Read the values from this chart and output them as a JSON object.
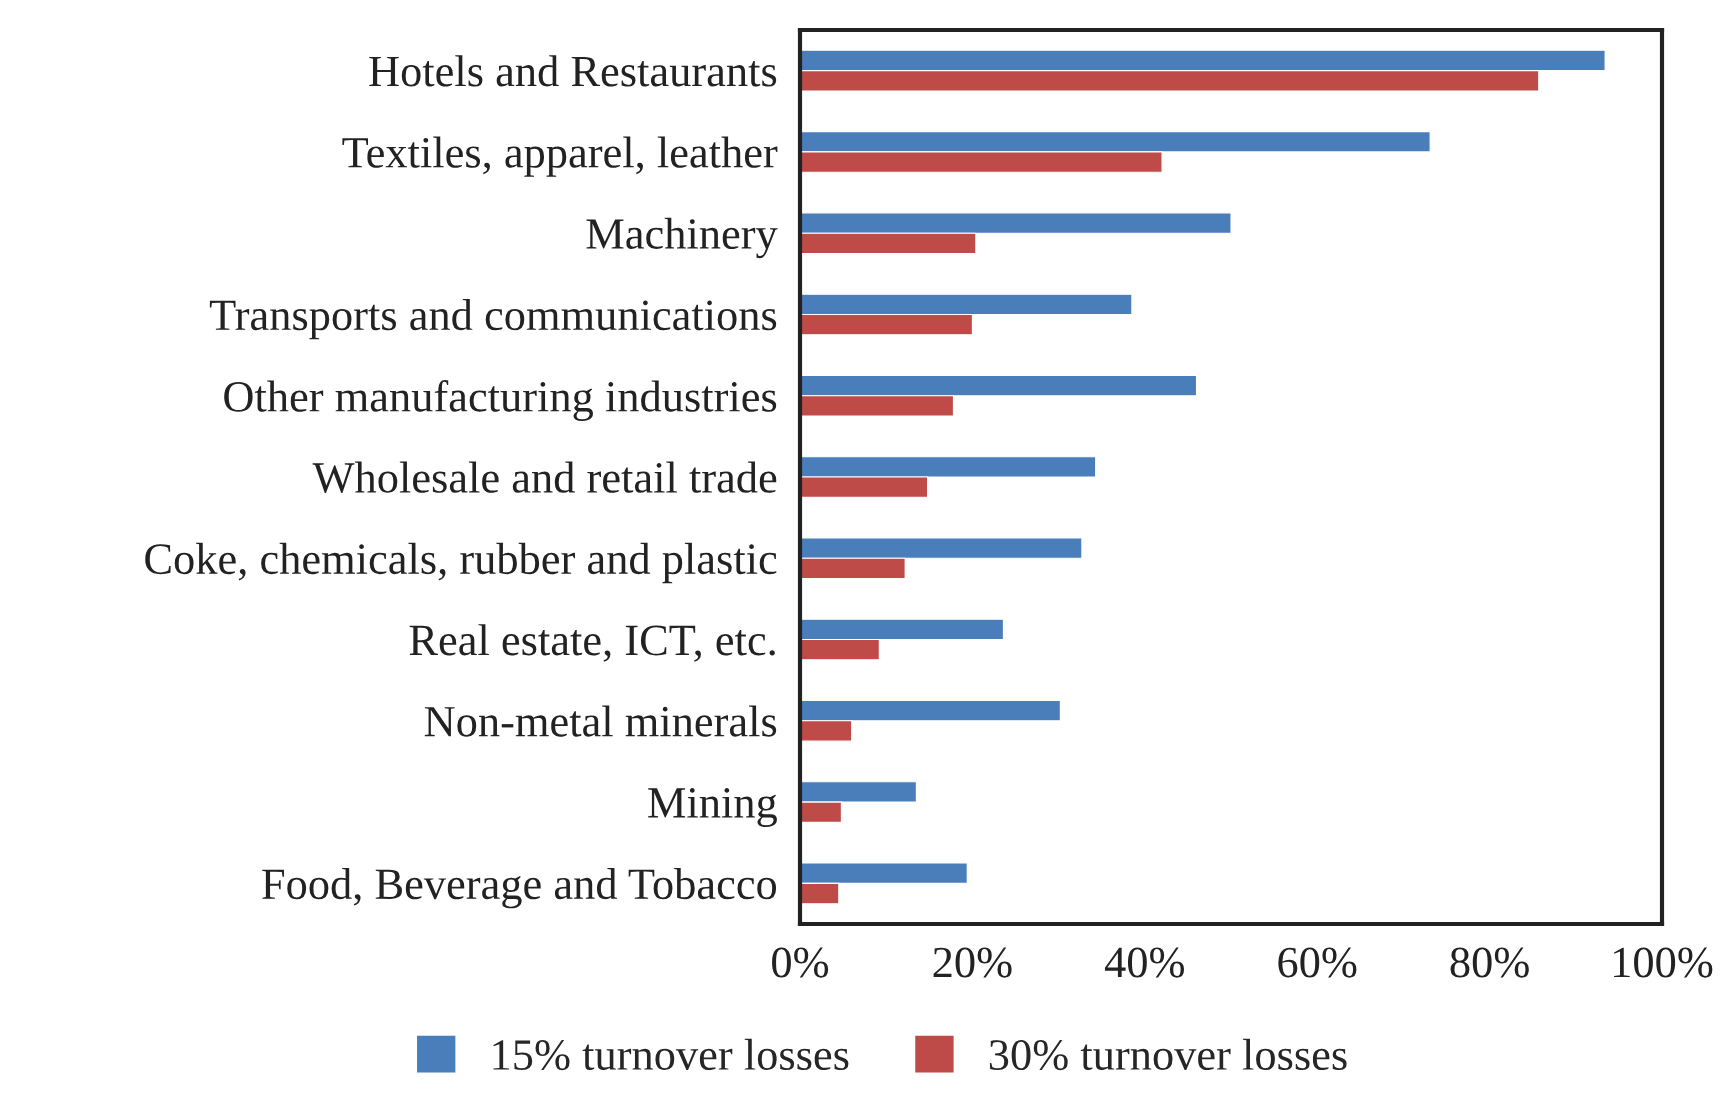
{
  "chart_data": {
    "type": "bar",
    "orientation": "horizontal",
    "categories": [
      "Hotels and Restaurants",
      "Textiles, apparel, leather",
      "Machinery",
      "Transports and communications",
      "Other manufacturing industries",
      "Wholesale and retail trade",
      "Coke, chemicals, rubber and plastic",
      "Real estate, ICT, etc.",
      "Non-metal minerals",
      "Mining",
      "Food, Beverage and Tobacco"
    ],
    "series": [
      {
        "name": "15% turnover losses",
        "color": "#4a7ebb",
        "values": [
          93.4,
          73.1,
          50.0,
          38.5,
          46.0,
          34.3,
          32.7,
          23.6,
          30.2,
          13.5,
          19.4
        ]
      },
      {
        "name": "30% turnover losses",
        "color": "#be4b48",
        "values": [
          85.7,
          42.0,
          20.4,
          20.0,
          17.8,
          14.8,
          12.2,
          9.2,
          6.0,
          4.8,
          4.5
        ]
      }
    ],
    "xlim": [
      0,
      100
    ],
    "xticks": [
      {
        "value": 0,
        "label": "0%"
      },
      {
        "value": 20,
        "label": "20%"
      },
      {
        "value": 40,
        "label": "40%"
      },
      {
        "value": 60,
        "label": "60%"
      },
      {
        "value": 80,
        "label": "80%"
      },
      {
        "value": 100,
        "label": "100%"
      }
    ],
    "grid": false,
    "legend": "bottom"
  }
}
